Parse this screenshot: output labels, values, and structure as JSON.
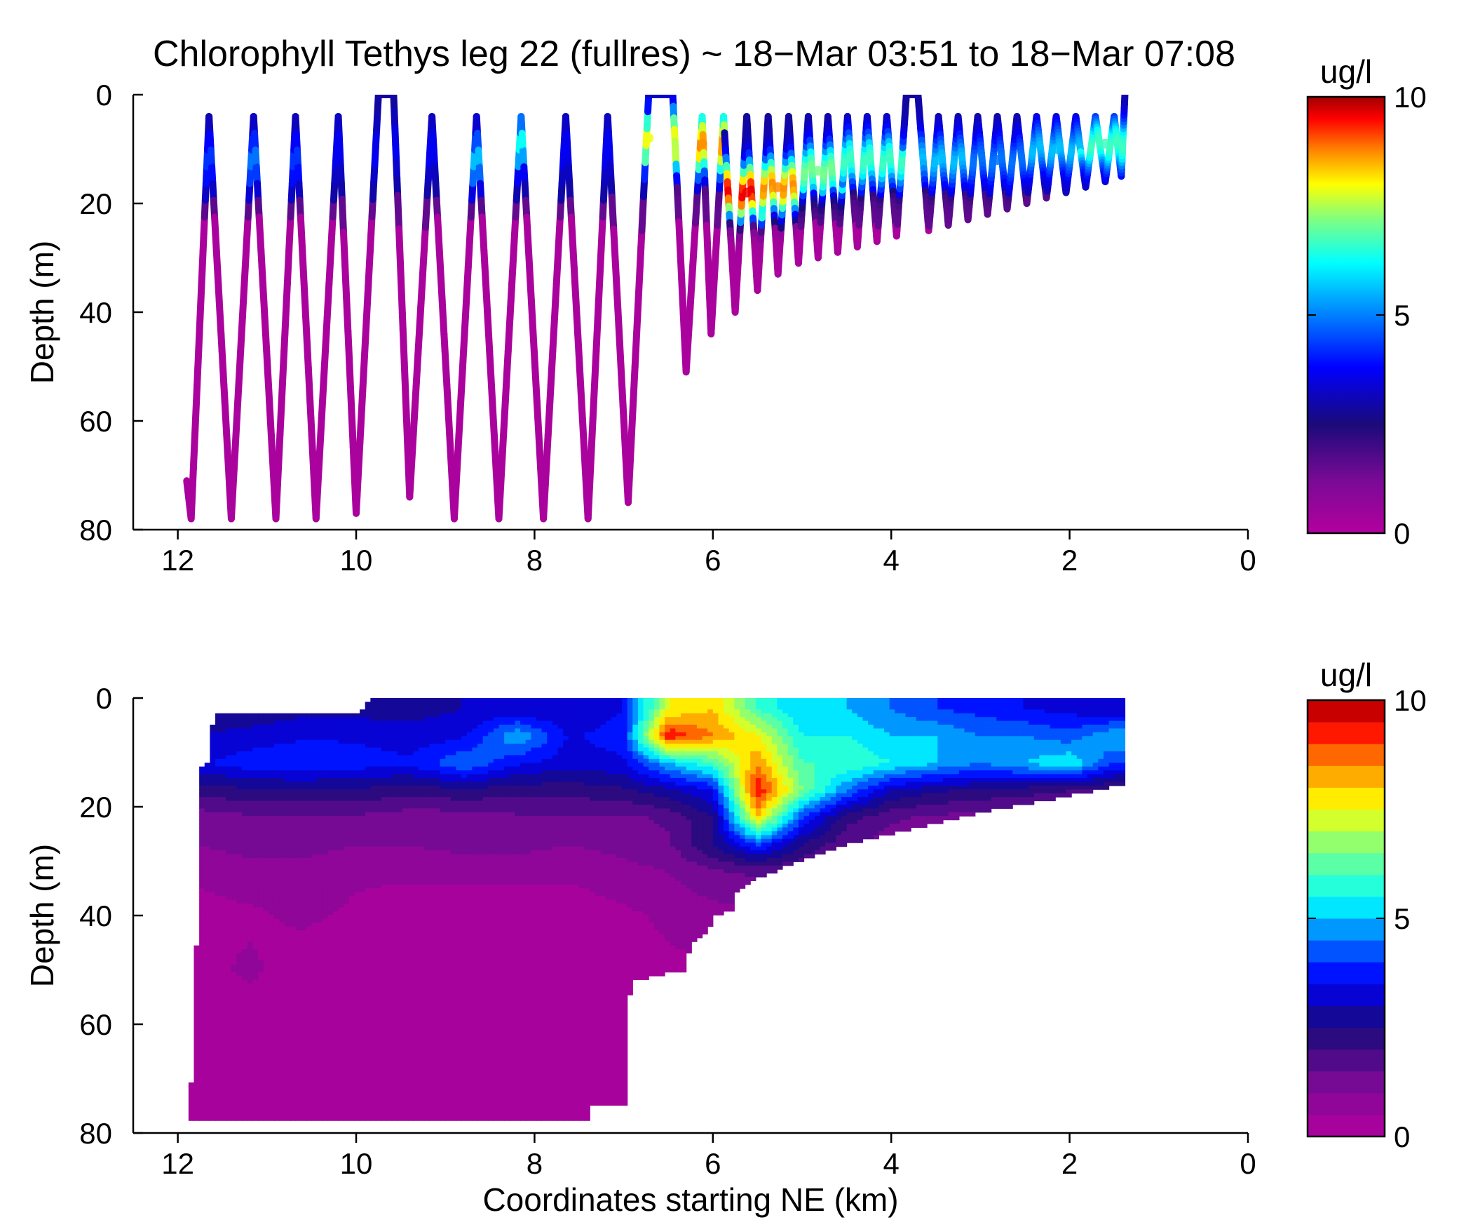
{
  "figure": {
    "title": "Chlorophyll Tethys leg 22 (fullres) ~ 18−Mar 03:51 to 18−Mar 07:08",
    "xlabel": "Coordinates starting NE (km)",
    "colors": {
      "background": "#ffffff",
      "axis": "#000000"
    }
  },
  "chart_data": [
    {
      "type": "scatter",
      "panel": "top",
      "title": "Chlorophyll Tethys leg 22 (fullres) ~ 18−Mar 03:51 to 18−Mar 07:08",
      "xlabel": "",
      "ylabel": "Depth (m)",
      "xlim": [
        12.5,
        0
      ],
      "ylim": [
        0,
        80
      ],
      "x_reversed": true,
      "y_reversed": true,
      "xticks": [
        12,
        10,
        8,
        6,
        4,
        2,
        0
      ],
      "yticks": [
        0,
        20,
        40,
        60,
        80
      ],
      "colorbar": {
        "label": "ug/l",
        "min": 0,
        "max": 10,
        "ticks": [
          0,
          5,
          10
        ],
        "colormap": "jet-purple",
        "continuous": true
      },
      "trajectory_vertices": [
        {
          "x": 11.9,
          "depth": 71
        },
        {
          "x": 11.85,
          "depth": 78
        },
        {
          "x": 11.65,
          "depth": 4
        },
        {
          "x": 11.4,
          "depth": 78
        },
        {
          "x": 11.15,
          "depth": 4
        },
        {
          "x": 10.9,
          "depth": 78
        },
        {
          "x": 10.68,
          "depth": 4
        },
        {
          "x": 10.45,
          "depth": 78
        },
        {
          "x": 10.2,
          "depth": 4
        },
        {
          "x": 10.0,
          "depth": 77
        },
        {
          "x": 9.75,
          "depth": 0
        },
        {
          "x": 9.58,
          "depth": 0
        },
        {
          "x": 9.4,
          "depth": 74
        },
        {
          "x": 9.15,
          "depth": 4
        },
        {
          "x": 8.9,
          "depth": 78
        },
        {
          "x": 8.65,
          "depth": 4
        },
        {
          "x": 8.4,
          "depth": 78
        },
        {
          "x": 8.15,
          "depth": 4
        },
        {
          "x": 7.9,
          "depth": 78
        },
        {
          "x": 7.65,
          "depth": 4
        },
        {
          "x": 7.4,
          "depth": 78
        },
        {
          "x": 7.18,
          "depth": 4
        },
        {
          "x": 6.95,
          "depth": 75
        },
        {
          "x": 6.72,
          "depth": 0
        },
        {
          "x": 6.45,
          "depth": 0
        },
        {
          "x": 6.3,
          "depth": 51
        },
        {
          "x": 6.12,
          "depth": 4
        },
        {
          "x": 6.02,
          "depth": 44
        },
        {
          "x": 5.88,
          "depth": 4
        },
        {
          "x": 5.75,
          "depth": 40
        },
        {
          "x": 5.62,
          "depth": 4
        },
        {
          "x": 5.5,
          "depth": 36
        },
        {
          "x": 5.38,
          "depth": 4
        },
        {
          "x": 5.27,
          "depth": 33
        },
        {
          "x": 5.15,
          "depth": 4
        },
        {
          "x": 5.04,
          "depth": 31
        },
        {
          "x": 4.93,
          "depth": 4
        },
        {
          "x": 4.82,
          "depth": 30
        },
        {
          "x": 4.71,
          "depth": 4
        },
        {
          "x": 4.6,
          "depth": 29
        },
        {
          "x": 4.49,
          "depth": 4
        },
        {
          "x": 4.38,
          "depth": 28
        },
        {
          "x": 4.27,
          "depth": 4
        },
        {
          "x": 4.16,
          "depth": 27
        },
        {
          "x": 4.05,
          "depth": 4
        },
        {
          "x": 3.94,
          "depth": 26
        },
        {
          "x": 3.83,
          "depth": 0
        },
        {
          "x": 3.7,
          "depth": 0
        },
        {
          "x": 3.58,
          "depth": 25
        },
        {
          "x": 3.47,
          "depth": 4
        },
        {
          "x": 3.36,
          "depth": 24
        },
        {
          "x": 3.25,
          "depth": 4
        },
        {
          "x": 3.14,
          "depth": 23
        },
        {
          "x": 3.03,
          "depth": 4
        },
        {
          "x": 2.92,
          "depth": 22
        },
        {
          "x": 2.81,
          "depth": 4
        },
        {
          "x": 2.7,
          "depth": 21
        },
        {
          "x": 2.59,
          "depth": 4
        },
        {
          "x": 2.48,
          "depth": 20
        },
        {
          "x": 2.37,
          "depth": 4
        },
        {
          "x": 2.26,
          "depth": 19
        },
        {
          "x": 2.15,
          "depth": 4
        },
        {
          "x": 2.04,
          "depth": 18
        },
        {
          "x": 1.93,
          "depth": 4
        },
        {
          "x": 1.82,
          "depth": 17
        },
        {
          "x": 1.71,
          "depth": 4
        },
        {
          "x": 1.6,
          "depth": 16
        },
        {
          "x": 1.5,
          "depth": 4
        },
        {
          "x": 1.42,
          "depth": 15
        },
        {
          "x": 1.38,
          "depth": 0
        }
      ],
      "profile_chlorophyll_layer": [
        {
          "x": 11.65,
          "depth": 12,
          "value": 4.0
        },
        {
          "x": 11.15,
          "depth": 12,
          "value": 4.5
        },
        {
          "x": 10.68,
          "depth": 12,
          "value": 4.0
        },
        {
          "x": 10.2,
          "depth": 10,
          "value": 3.5
        },
        {
          "x": 9.15,
          "depth": 10,
          "value": 3.5
        },
        {
          "x": 8.65,
          "depth": 12,
          "value": 5.0
        },
        {
          "x": 8.15,
          "depth": 9,
          "value": 5.5
        },
        {
          "x": 7.65,
          "depth": 10,
          "value": 3.5
        },
        {
          "x": 7.18,
          "depth": 10,
          "value": 3.5
        },
        {
          "x": 6.72,
          "depth": 8,
          "value": 7.5
        },
        {
          "x": 6.12,
          "depth": 9,
          "value": 8.5
        },
        {
          "x": 5.62,
          "depth": 18,
          "value": 9.5
        },
        {
          "x": 5.27,
          "depth": 17,
          "value": 8.5
        },
        {
          "x": 4.82,
          "depth": 14,
          "value": 6.5
        },
        {
          "x": 4.27,
          "depth": 12,
          "value": 6.0
        },
        {
          "x": 3.47,
          "depth": 12,
          "value": 5.0
        },
        {
          "x": 2.81,
          "depth": 12,
          "value": 4.5
        },
        {
          "x": 2.15,
          "depth": 10,
          "value": 5.0
        },
        {
          "x": 1.6,
          "depth": 9,
          "value": 6.0
        }
      ]
    },
    {
      "type": "heatmap",
      "panel": "bottom",
      "title": "",
      "xlabel": "Coordinates starting NE (km)",
      "ylabel": "Depth (m)",
      "xlim": [
        12.5,
        0
      ],
      "ylim": [
        0,
        80
      ],
      "x_reversed": true,
      "y_reversed": true,
      "xticks": [
        12,
        10,
        8,
        6,
        4,
        2,
        0
      ],
      "yticks": [
        0,
        20,
        40,
        60,
        80
      ],
      "colorbar": {
        "label": "ug/l",
        "min": 0,
        "max": 10,
        "ticks": [
          0,
          5,
          10
        ],
        "colormap": "jet-purple",
        "levels": 20
      },
      "data_boundary": [
        {
          "x": 11.9,
          "depth": 78
        },
        {
          "x": 11.9,
          "depth": 71
        },
        {
          "x": 11.8,
          "depth": 70
        },
        {
          "x": 11.8,
          "depth": 46
        },
        {
          "x": 11.75,
          "depth": 45
        },
        {
          "x": 11.75,
          "depth": 13
        },
        {
          "x": 11.65,
          "depth": 12
        },
        {
          "x": 11.6,
          "depth": 3
        },
        {
          "x": 10.0,
          "depth": 3
        },
        {
          "x": 9.8,
          "depth": 0
        },
        {
          "x": 1.4,
          "depth": 0
        },
        {
          "x": 1.4,
          "depth": 16
        },
        {
          "x": 2.0,
          "depth": 18
        },
        {
          "x": 3.0,
          "depth": 21
        },
        {
          "x": 4.0,
          "depth": 25
        },
        {
          "x": 4.5,
          "depth": 27
        },
        {
          "x": 5.0,
          "depth": 30
        },
        {
          "x": 5.5,
          "depth": 33
        },
        {
          "x": 5.75,
          "depth": 36
        },
        {
          "x": 5.75,
          "depth": 39
        },
        {
          "x": 6.0,
          "depth": 40
        },
        {
          "x": 6.05,
          "depth": 43
        },
        {
          "x": 6.25,
          "depth": 45
        },
        {
          "x": 6.3,
          "depth": 50
        },
        {
          "x": 6.9,
          "depth": 52
        },
        {
          "x": 6.95,
          "depth": 56
        },
        {
          "x": 6.95,
          "depth": 75
        },
        {
          "x": 7.4,
          "depth": 75
        },
        {
          "x": 7.4,
          "depth": 78
        }
      ],
      "field": {
        "x": [
          11.8,
          11.2,
          10.6,
          10.0,
          9.4,
          8.8,
          8.2,
          7.6,
          7.0,
          6.5,
          6.0,
          5.5,
          5.0,
          4.5,
          4.0,
          3.5,
          3.0,
          2.5,
          2.0,
          1.5
        ],
        "depth": [
          2,
          7,
          12,
          17,
          22,
          27,
          32,
          40,
          50,
          60,
          70,
          78
        ],
        "values": [
          [
            2.6,
            2.6,
            2.8,
            2.8,
            2.8,
            3.0,
            3.0,
            3.0,
            3.5,
            7.5,
            8.0,
            6.0,
            5.0,
            5.0,
            4.5,
            4.0,
            3.8,
            3.5,
            3.3,
            3.0
          ],
          [
            3.0,
            3.2,
            3.4,
            3.4,
            3.2,
            3.4,
            5.0,
            3.4,
            3.8,
            9.5,
            8.5,
            7.5,
            5.5,
            5.5,
            5.0,
            5.0,
            4.5,
            4.5,
            4.2,
            5.0
          ],
          [
            3.4,
            3.8,
            4.0,
            3.8,
            3.6,
            4.5,
            3.6,
            3.2,
            3.4,
            5.0,
            6.0,
            8.5,
            6.0,
            6.0,
            5.5,
            5.0,
            4.5,
            5.0,
            5.5,
            4.0
          ],
          [
            2.2,
            2.4,
            2.4,
            2.4,
            2.2,
            2.4,
            2.2,
            2.2,
            2.4,
            2.8,
            3.5,
            9.5,
            6.5,
            4.5,
            3.0,
            2.6,
            2.4,
            2.2,
            2.0,
            1.8
          ],
          [
            1.2,
            1.4,
            1.4,
            1.4,
            1.2,
            1.2,
            1.4,
            1.4,
            1.4,
            1.6,
            2.5,
            8.0,
            4.0,
            2.2,
            1.6,
            1.4,
            1.2,
            1.2,
            1.2,
            1.2
          ],
          [
            1.0,
            1.2,
            1.2,
            1.0,
            1.0,
            1.2,
            1.2,
            1.0,
            1.2,
            1.4,
            2.5,
            4.0,
            2.5,
            1.6,
            1.2,
            1.2,
            1.2,
            1.2,
            1.2,
            1.2
          ],
          [
            0.6,
            0.8,
            0.8,
            0.6,
            0.6,
            0.6,
            0.6,
            0.6,
            0.8,
            1.0,
            1.4,
            1.6,
            1.4,
            1.2,
            1.2,
            1.2,
            1.2,
            1.2,
            1.2,
            1.2
          ],
          [
            0.3,
            0.4,
            0.6,
            0.4,
            0.2,
            0.2,
            0.2,
            0.2,
            0.4,
            0.6,
            0.8,
            0.8,
            0.8,
            0.8,
            0.8,
            0.8,
            0.8,
            0.8,
            0.8,
            0.8
          ],
          [
            0.3,
            0.6,
            0.2,
            0.2,
            0.2,
            0.2,
            0.2,
            0.2,
            0.2,
            0.4,
            0.4,
            0.4,
            0.4,
            0.4,
            0.4,
            0.4,
            0.4,
            0.4,
            0.4,
            0.4
          ],
          [
            0.2,
            0.2,
            0.2,
            0.2,
            0.2,
            0.2,
            0.2,
            0.2,
            0.2,
            0.2,
            0.2,
            0.2,
            0.2,
            0.2,
            0.2,
            0.2,
            0.2,
            0.2,
            0.2,
            0.2
          ],
          [
            0.2,
            0.2,
            0.2,
            0.2,
            0.2,
            0.2,
            0.2,
            0.2,
            0.2,
            0.2,
            0.2,
            0.2,
            0.2,
            0.2,
            0.2,
            0.2,
            0.2,
            0.2,
            0.2,
            0.2
          ],
          [
            0.2,
            0.2,
            0.2,
            0.2,
            0.2,
            0.2,
            0.2,
            0.2,
            0.2,
            0.2,
            0.2,
            0.2,
            0.2,
            0.2,
            0.2,
            0.2,
            0.2,
            0.2,
            0.2,
            0.2
          ]
        ]
      }
    }
  ]
}
